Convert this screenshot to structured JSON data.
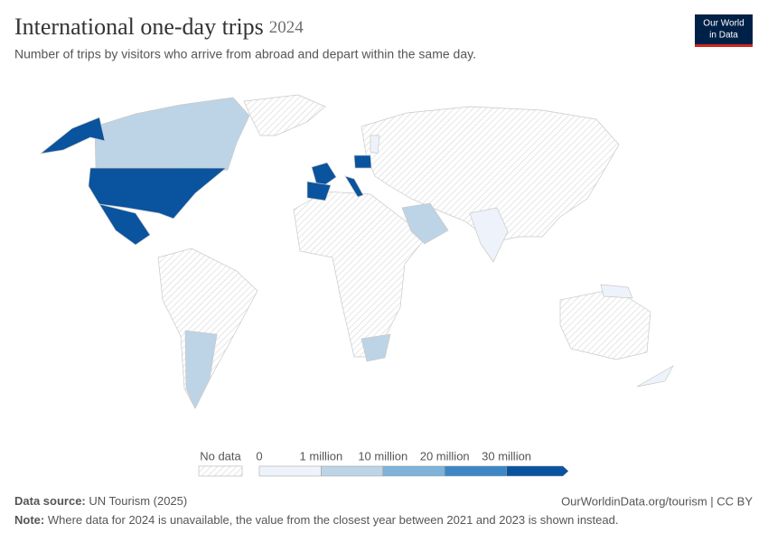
{
  "header": {
    "title": "International one-day trips",
    "year": "2024",
    "subtitle": "Number of trips by visitors who arrive from abroad and depart within the same day.",
    "logo": [
      "Our World",
      "in Data"
    ]
  },
  "legend": {
    "no_data": "No data",
    "ticks": [
      "0",
      "1 million",
      "10 million",
      "20 million",
      "30 million"
    ],
    "colors": [
      "#eef3fb",
      "#bdd4e6",
      "#7fb2d9",
      "#3d87c4",
      "#0a539e"
    ]
  },
  "footer": {
    "source_label": "Data source:",
    "source": "UN Tourism (2025)",
    "url": "OurWorldinData.org/tourism | CC BY",
    "note_label": "Note:",
    "note": "Where data for 2024 is unavailable, the value from the closest year between 2021 and 2023 is shown instead."
  }
}
